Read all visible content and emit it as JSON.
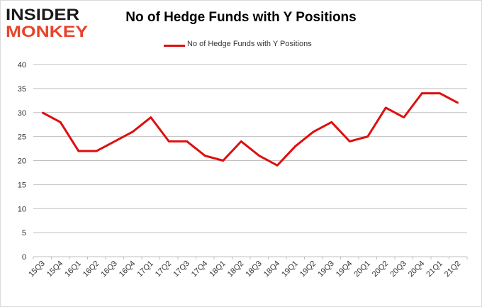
{
  "branding": {
    "logo_line1": "INSIDER",
    "logo_line2": "MONKEY",
    "colors": {
      "dark": "#1a1a1a",
      "accent": "#e8442a"
    }
  },
  "chart_data": {
    "type": "line",
    "title": "No of Hedge Funds with Y Positions",
    "xlabel": "",
    "ylabel": "",
    "categories": [
      "15Q3",
      "15Q4",
      "16Q1",
      "16Q2",
      "16Q3",
      "16Q4",
      "17Q1",
      "17Q2",
      "17Q3",
      "17Q4",
      "18Q1",
      "18Q2",
      "18Q3",
      "18Q4",
      "19Q1",
      "19Q2",
      "19Q3",
      "19Q4",
      "20Q1",
      "20Q2",
      "20Q3",
      "20Q4",
      "21Q1",
      "21Q2"
    ],
    "series": [
      {
        "name": "No of Hedge Funds with Y Positions",
        "color": "#dd0f0f",
        "values": [
          30,
          28,
          22,
          22,
          24,
          26,
          29,
          24,
          24,
          21,
          20,
          24,
          21,
          19,
          23,
          26,
          28,
          24,
          25,
          31,
          29,
          34,
          34,
          32
        ]
      }
    ],
    "ylim": [
      0,
      40
    ],
    "yticks": [
      0,
      5,
      10,
      15,
      20,
      25,
      30,
      35,
      40
    ],
    "grid": true,
    "legend_position": "top-center"
  }
}
